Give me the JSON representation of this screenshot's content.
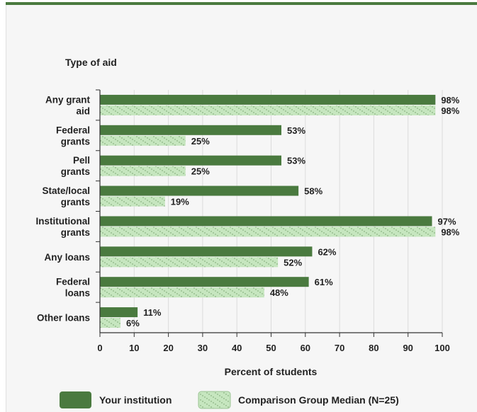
{
  "chart_data": {
    "type": "bar",
    "orientation": "horizontal",
    "title": "Type of aid",
    "xlabel": "Percent of students",
    "xlim": [
      0,
      100
    ],
    "xticks": [
      "0",
      "10",
      "20",
      "30",
      "40",
      "50",
      "60",
      "70",
      "80",
      "90",
      "100"
    ],
    "grid": true,
    "legend_position": "bottom",
    "categories": [
      [
        "Any grant",
        "aid"
      ],
      [
        "Federal",
        "grants"
      ],
      [
        "Pell",
        "grants"
      ],
      [
        "State/local",
        "grants"
      ],
      [
        "Institutional",
        "grants"
      ],
      [
        "Any loans"
      ],
      [
        "Federal",
        "loans"
      ],
      [
        "Other loans"
      ]
    ],
    "series": [
      {
        "name": "Your institution",
        "values": [
          98,
          53,
          53,
          58,
          97,
          62,
          61,
          11
        ],
        "labels": [
          "98%",
          "53%",
          "53%",
          "58%",
          "97%",
          "62%",
          "61%",
          "11%"
        ],
        "color": "#4a7a3f",
        "pattern": "solid"
      },
      {
        "name": "Comparison Group Median (N=25)",
        "values": [
          98,
          25,
          25,
          19,
          98,
          52,
          48,
          6
        ],
        "labels": [
          "98%",
          "25%",
          "25%",
          "19%",
          "98%",
          "52%",
          "48%",
          "6%"
        ],
        "color": "#c6e6bf",
        "pattern": "hatched"
      }
    ]
  }
}
